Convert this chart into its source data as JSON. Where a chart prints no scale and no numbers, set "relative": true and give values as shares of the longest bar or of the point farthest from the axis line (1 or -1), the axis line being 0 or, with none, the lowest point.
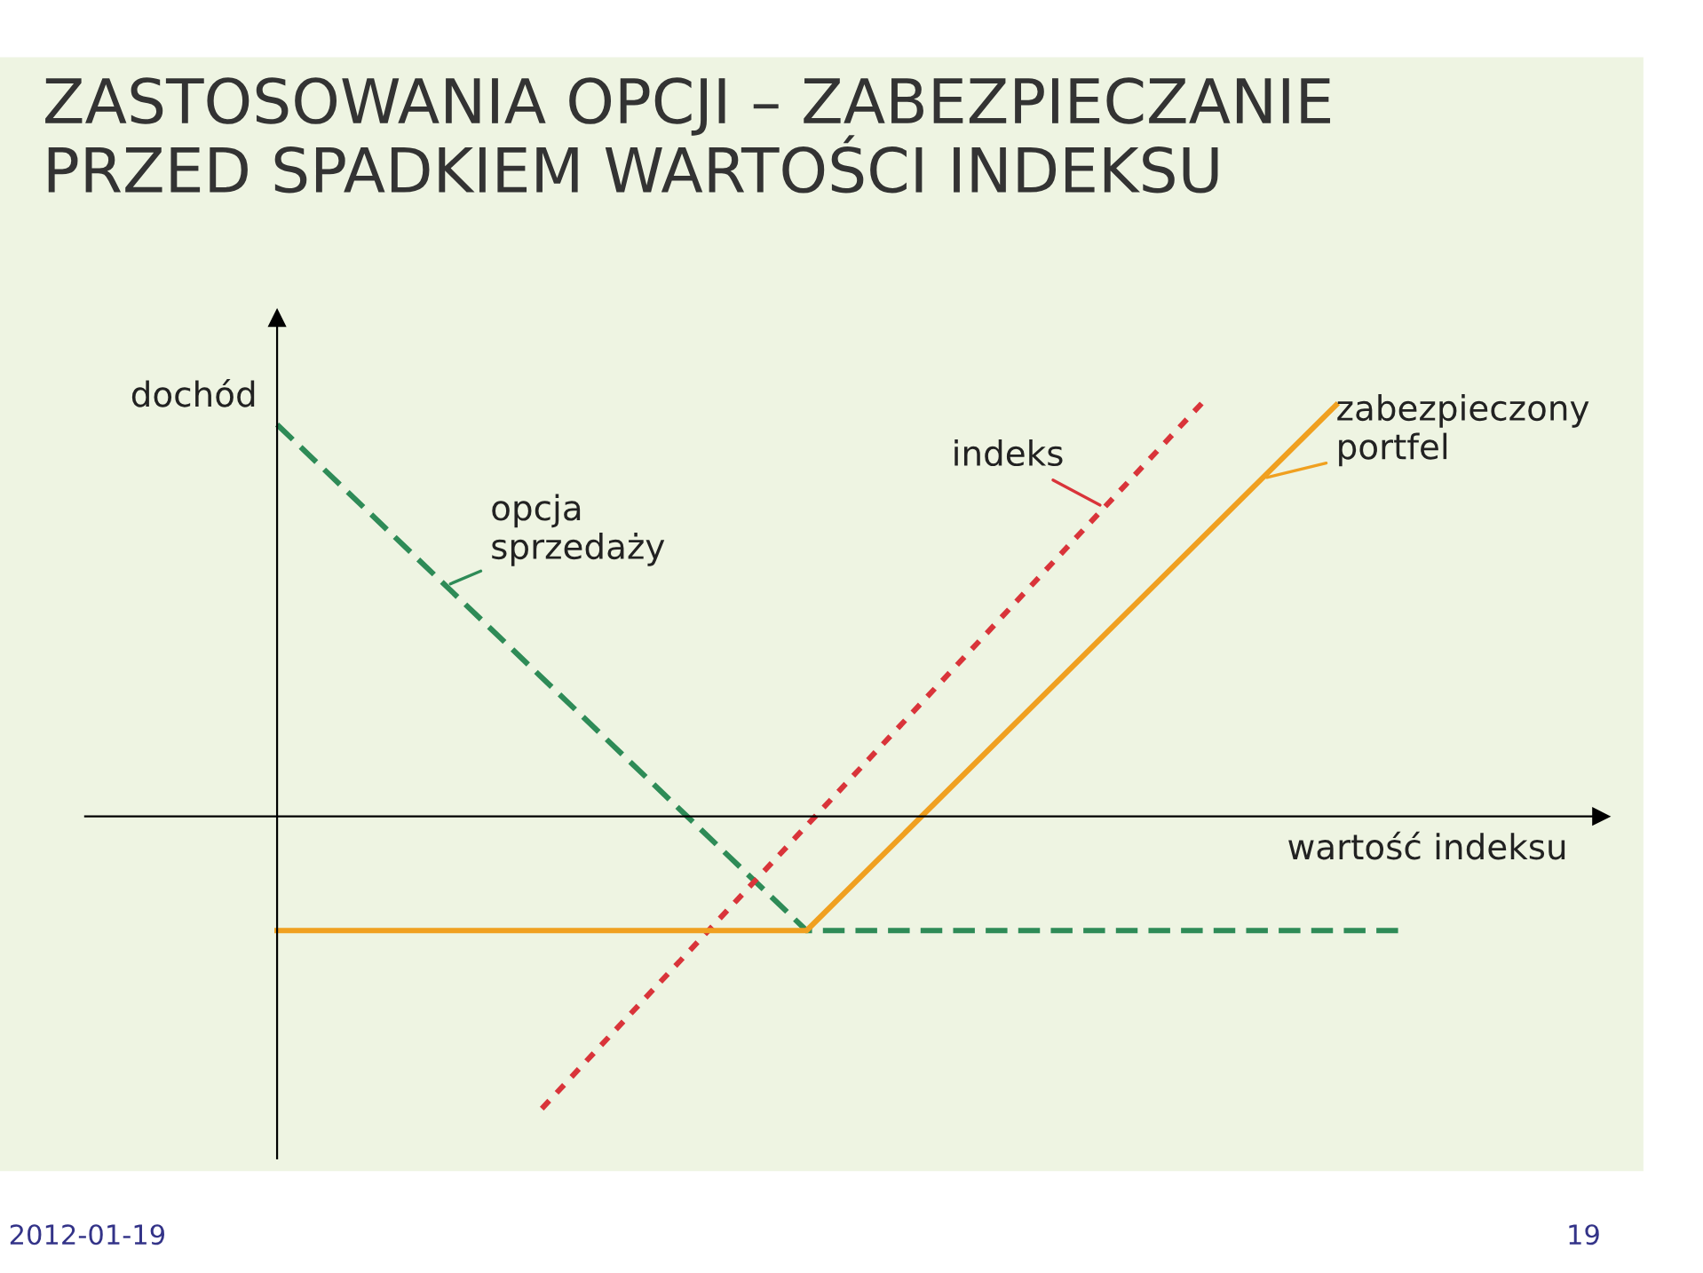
{
  "chart_data": {
    "type": "line",
    "title": "ZASTOSOWANIA OPCJI – ZABEZPIECZANIE\nPRZED SPADKIEM WARTOŚCI INDEKSU",
    "ylabel": "dochód",
    "xlabel": "wartość indeksu",
    "relative": true,
    "marker": "none",
    "categories": [
      null,
      null,
      null,
      null,
      null,
      null,
      null,
      null,
      null,
      null,
      null,
      null,
      null,
      null,
      null,
      null,
      null,
      null
    ],
    "series": [
      {
        "name": "opcja\nsprzedaży",
        "color": "#2e8b57",
        "line_style": "dashed",
        "values": [
          0.944,
          null,
          null,
          null,
          null,
          null,
          null,
          null,
          -0.275,
          null,
          null,
          null,
          null,
          null,
          null,
          null,
          null,
          -0.275
        ]
      },
      {
        "name": "indeks",
        "color": "#d9343a",
        "line_style": "dotted",
        "values": [
          null,
          null,
          null,
          null,
          -0.704,
          null,
          null,
          null,
          null,
          null,
          null,
          null,
          null,
          null,
          1.0,
          null,
          null,
          null
        ]
      },
      {
        "name": "zabezpieczony\nportfel",
        "color": "#f0a020",
        "line_style": "solid",
        "values": [
          -0.275,
          null,
          null,
          null,
          null,
          null,
          null,
          null,
          -0.275,
          null,
          null,
          null,
          null,
          null,
          null,
          null,
          0.991,
          null
        ]
      }
    ],
    "annotations": [
      "2012-01-19",
      "19"
    ]
  }
}
